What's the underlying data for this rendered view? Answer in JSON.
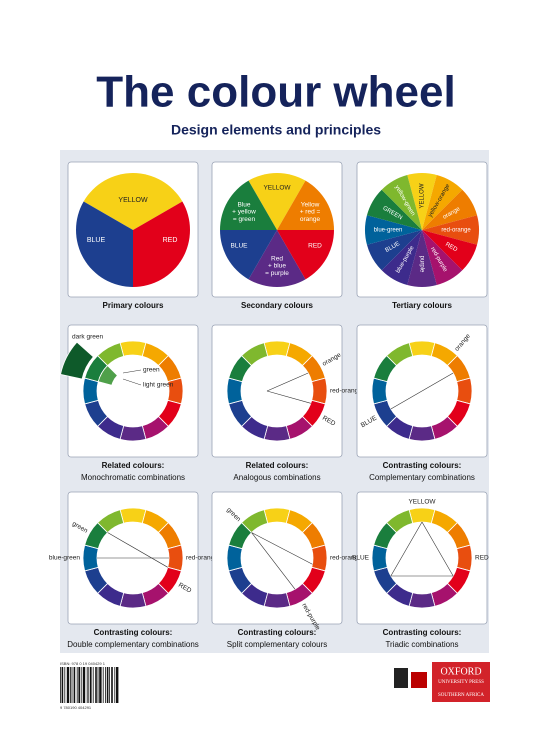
{
  "header": {
    "title": "The colour wheel",
    "subtitle": "Design elements and principles"
  },
  "cards": [
    {
      "caption": [
        "Primary colours"
      ],
      "labels": [
        [
          "YELLOW"
        ],
        [
          "BLUE"
        ],
        [
          "RED"
        ]
      ]
    },
    {
      "caption": [
        "Secondary colours"
      ],
      "labels": [
        [
          "YELLOW"
        ],
        [
          "Blue",
          "+ yellow",
          "= green"
        ],
        [
          "Yellow",
          "+ red =",
          "orange"
        ],
        [
          "BLUE"
        ],
        [
          "RED"
        ],
        [
          "Red",
          "+ blue",
          "= purple"
        ]
      ]
    },
    {
      "caption": [
        "Tertiary colours"
      ],
      "labels": [
        [
          "YELLOW"
        ],
        [
          "yellow-orange"
        ],
        [
          "orange"
        ],
        [
          "red-orange"
        ],
        [
          "RED"
        ],
        [
          "red-purple"
        ],
        [
          "purple"
        ],
        [
          "blue-purple"
        ],
        [
          "BLUE"
        ],
        [
          "blue-green"
        ],
        [
          "GREEN"
        ],
        [
          "yellow-green"
        ]
      ]
    },
    {
      "caption": [
        "Related colours:",
        "Monochromatic combinations"
      ],
      "labels": [
        [
          "dark green"
        ],
        [
          "green"
        ],
        [
          "light green"
        ]
      ]
    },
    {
      "caption": [
        "Related colours:",
        "Analogous combinations"
      ],
      "labels": [
        [
          "orange"
        ],
        [
          "red-orange"
        ],
        [
          "RED"
        ]
      ]
    },
    {
      "caption": [
        "Contrasting colours:",
        "Complementary combinations"
      ],
      "labels": [
        [
          "orange"
        ],
        [
          "BLUE"
        ]
      ]
    },
    {
      "caption": [
        "Contrasting colours:",
        "Double complementary combinations"
      ],
      "labels": [
        [
          "green"
        ],
        [
          "blue-green"
        ],
        [
          "red-orange"
        ],
        [
          "RED"
        ]
      ]
    },
    {
      "caption": [
        "Contrasting colours:",
        "Split complementary colours"
      ],
      "labels": [
        [
          "green"
        ],
        [
          "red-orange"
        ],
        [
          "red-purple"
        ]
      ]
    },
    {
      "caption": [
        "Contrasting colours:",
        "Triadic combinations"
      ],
      "labels": [
        [
          "YELLOW"
        ],
        [
          "BLUE"
        ],
        [
          "RED"
        ]
      ]
    }
  ],
  "footer": {
    "isbn": "ISBN: 978 0 19 040429 1",
    "barcode": "9 780190 404291",
    "logo": [
      "OXFORD",
      "UNIVERSITY PRESS",
      "SOUTHERN AFRICA"
    ]
  }
}
